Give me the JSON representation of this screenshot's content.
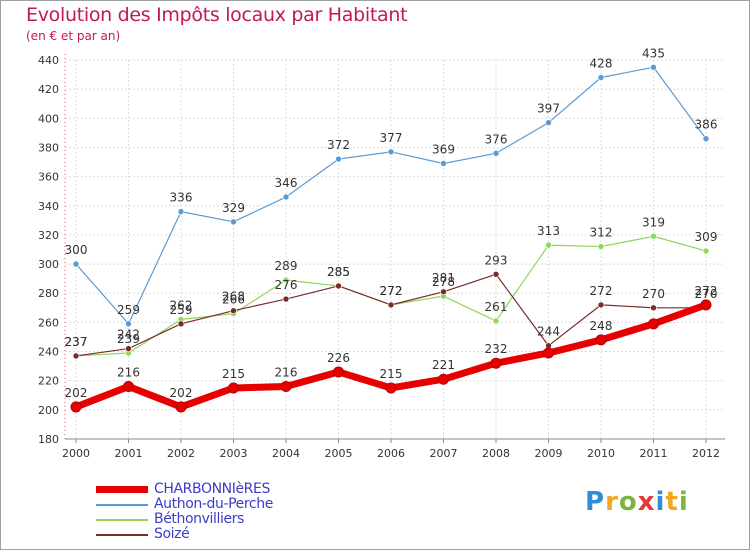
{
  "title": "Evolution des Impôts locaux par Habitant",
  "subtitle": "(en € et par an)",
  "logo": {
    "letters": [
      "P",
      "r",
      "o",
      "x",
      "i",
      "t",
      "i"
    ],
    "colors": [
      "#2f8fd6",
      "#f5a623",
      "#7cb342",
      "#e53935",
      "#2f8fd6",
      "#f5a623",
      "#7cb342"
    ]
  },
  "chart_data": {
    "type": "line",
    "x": [
      "2000",
      "2001",
      "2002",
      "2003",
      "2004",
      "2005",
      "2006",
      "2007",
      "2008",
      "2009",
      "2010",
      "2011",
      "2012"
    ],
    "ylim": [
      180,
      440
    ],
    "yticks": [
      180,
      200,
      220,
      240,
      260,
      280,
      300,
      320,
      340,
      360,
      380,
      400,
      420,
      440
    ],
    "grid": true,
    "legend_position": "bottom-left",
    "series": [
      {
        "name": "CHARBONNIèRES",
        "color": "#e60000",
        "width": 7,
        "values": [
          202,
          216,
          202,
          215,
          216,
          226,
          215,
          221,
          232,
          239,
          248,
          259,
          272
        ],
        "labels": [
          "202",
          "216",
          "202",
          "215",
          "216",
          "226",
          "215",
          "221",
          "232",
          "",
          "248",
          "",
          "272"
        ]
      },
      {
        "name": "Authon-du-Perche",
        "color": "#5b9bd5",
        "width": 1.2,
        "values": [
          300,
          259,
          336,
          329,
          346,
          372,
          377,
          369,
          376,
          397,
          428,
          435,
          386
        ],
        "labels": [
          "300",
          "259",
          "336",
          "329",
          "346",
          "372",
          "377",
          "369",
          "376",
          "397",
          "428",
          "435",
          "386"
        ]
      },
      {
        "name": "Béthonvilliers",
        "color": "#8fd65a",
        "width": 1.2,
        "values": [
          237,
          239,
          262,
          266,
          289,
          285,
          272,
          278,
          261,
          313,
          312,
          319,
          309
        ],
        "labels": [
          "237",
          "239",
          "262",
          "266",
          "289",
          "285",
          "272",
          "278",
          "261",
          "313",
          "312",
          "319",
          "309"
        ]
      },
      {
        "name": "Soizé",
        "color": "#7b2a2a",
        "width": 1.2,
        "values": [
          237,
          242,
          259,
          268,
          276,
          285,
          272,
          281,
          293,
          244,
          272,
          270,
          270
        ],
        "labels": [
          "237",
          "242",
          "259",
          "268",
          "276",
          "285",
          "272",
          "281",
          "293",
          "244",
          "272",
          "270",
          "270"
        ]
      }
    ]
  }
}
